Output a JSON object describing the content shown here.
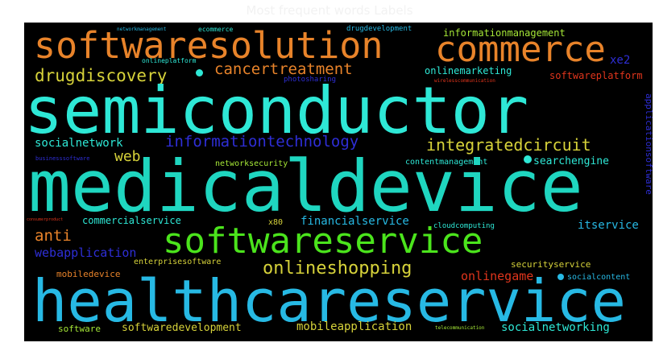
{
  "title": "Most frequent words Labels",
  "words": {
    "semiconductor": "semiconductor",
    "medicaldevice": "medicaldevice",
    "healthcareservice": "healthcareservice",
    "softwaresolution": "softwaresolution",
    "commerce": "commerce",
    "softwareservice": "softwareservice",
    "drugdiscovery": "drugdiscovery",
    "cancertreatment": "cancertreatment",
    "informationtechnology": "informationtechnology",
    "integratedcircuit": "integratedcircuit",
    "socialnetwork": "socialnetwork",
    "web": "web",
    "onlineshopping": "onlineshopping",
    "anti": "anti",
    "financialservice": "financialservice",
    "webapplication": "webapplication",
    "onlinegame": "onlinegame",
    "mobileapplication": "mobileapplication",
    "softwaredevelopment": "softwaredevelopment",
    "socialnetworking": "socialnetworking",
    "informationmanagement": "informationmanagement",
    "onlinemarketing": "onlinemarketing",
    "softwareplatform": "softwareplatform",
    "xe2": "xe2",
    "searchengine": "searchengine",
    "contentmanagement": "contentmanagement",
    "networksecurity": "networksecurity",
    "commercialservice": "commercialservice",
    "itservice": "itservice",
    "enterprisesoftware": "enterprisesoftware",
    "securityservice": "securityservice",
    "mobiledevice": "mobiledevice",
    "socialcontent": "socialcontent",
    "software": "software",
    "x80": "x80",
    "cloudcomputing": "cloudcomputing",
    "applicationsoftware": "applicationsoftware",
    "drugdevelopment": "drugdevelopment",
    "ecommerce": "ecommerce",
    "onlineplatform": "onlineplatform",
    "photosharing": "photosharing",
    "wirelesscommunication": "wirelesscommunication",
    "businesssoftware": "businesssoftware",
    "networkmanagement": "networkmanagement",
    "consumerproduct": "consumerproduct",
    "telecommunication": "telecommunication"
  },
  "colors": {
    "cyan": "#2ee8d6",
    "teal": "#1fd6c0",
    "skyblue": "#27b9e4",
    "orange": "#e8832a",
    "green": "#4be41c",
    "lime": "#a6e837",
    "yellow": "#d6d23a",
    "blue": "#2e2ed6",
    "red": "#e0351c"
  }
}
